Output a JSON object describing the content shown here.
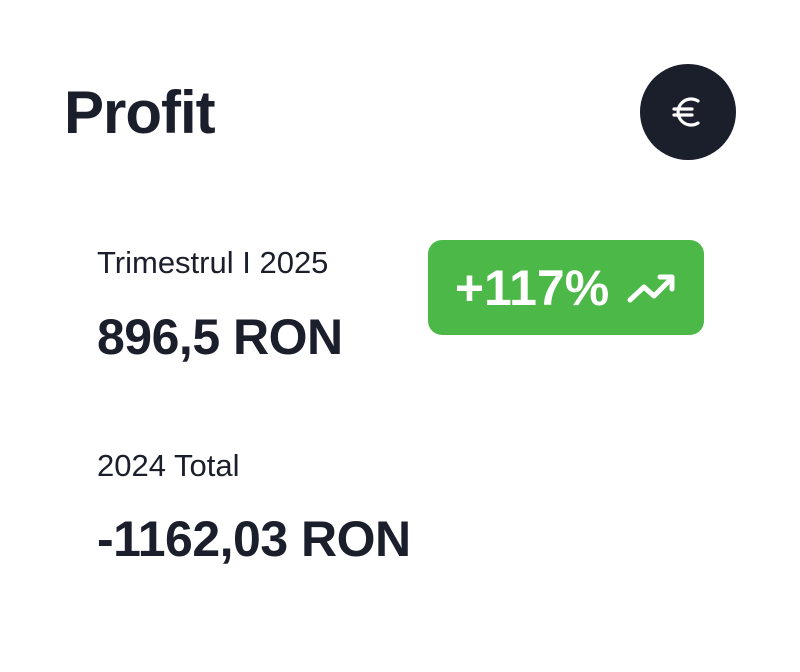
{
  "card": {
    "title": "Profit",
    "currency_icon": "euro-icon",
    "current": {
      "label": "Trimestrul I 2025",
      "value": "896,5 RON"
    },
    "change": {
      "text": "+117%",
      "icon": "trending-up-icon",
      "color": "#4cb848"
    },
    "previous": {
      "label": "2024 Total",
      "value": "-1162,03 RON"
    }
  }
}
